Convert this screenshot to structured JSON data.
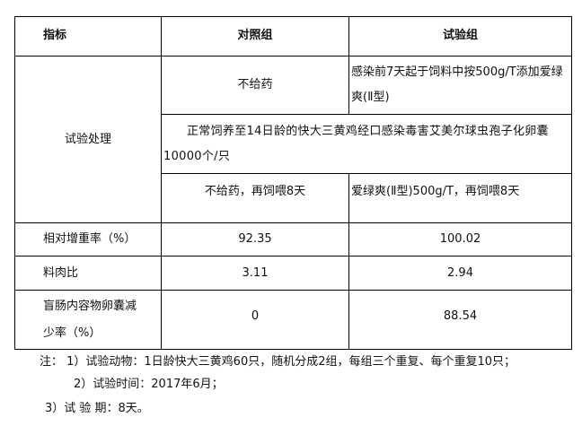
{
  "table": {
    "headers": [
      "指标",
      "对照组",
      "试验组"
    ],
    "treatment_label": "试验处理",
    "treatment": {
      "control_pre": "不给药",
      "test_pre": "感染前7天起于饲料中按500g/T添加爱绿爽(Ⅱ型)",
      "infection": "正常饲养至14日龄的快大三黄鸡经口感染毒害艾美尔球虫孢子化卵囊10000个/只",
      "control_post": "不给药，再饲喂8天",
      "test_post": "爱绿爽(Ⅱ型)500g/T，再饲喂8天"
    },
    "rows": [
      {
        "label": "相对增重率（%）",
        "control": "92.35",
        "test": "100.02"
      },
      {
        "label": "料肉比",
        "control": "3.11",
        "test": "2.94"
      },
      {
        "label": "盲肠内容物卵囊减少率（%）",
        "control": "0",
        "test": "88.54"
      }
    ]
  },
  "notes": [
    "注： 1）试验动物：1日龄快大三黄鸡60只，随机分成2组，每组三个重复、每个重复10只；",
    "2）试验时间：2017年6月；",
    "3）试 验 期：8天。"
  ]
}
